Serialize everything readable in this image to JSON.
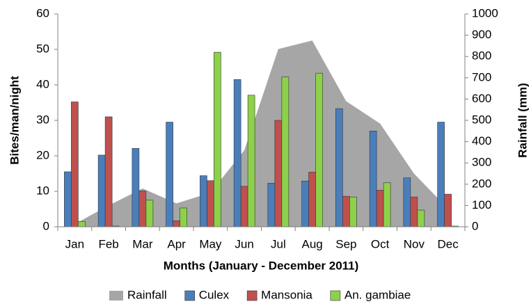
{
  "chart_data": {
    "type": "bar",
    "x_label": "Months (January - December 2011)",
    "y_label": "Bites/man/night",
    "y2_label": "Rainfall (mm)",
    "categories": [
      "Jan",
      "Feb",
      "Mar",
      "Apr",
      "May",
      "Jun",
      "Jul",
      "Aug",
      "Sep",
      "Oct",
      "Nov",
      "Dec"
    ],
    "series": [
      {
        "name": "Rainfall",
        "type": "area",
        "axis": "y2",
        "color": "#a6a6a6",
        "values": [
          13,
          100,
          180,
          110,
          160,
          360,
          835,
          875,
          590,
          485,
          250,
          85
        ]
      },
      {
        "name": "Culex",
        "color": "#4a7ebb",
        "values": [
          15.5,
          20.2,
          22.1,
          29.5,
          14.4,
          41.5,
          12.3,
          12.9,
          33.3,
          27,
          13.8,
          29.5
        ]
      },
      {
        "name": "Mansonia",
        "color": "#c0504d",
        "values": [
          35.2,
          31,
          10.1,
          1.7,
          13,
          11.4,
          30,
          15.4,
          8.6,
          10.3,
          8.4,
          9.2
        ]
      },
      {
        "name": "An. gambiae",
        "color": "#8dd14a",
        "values": [
          1.5,
          0.2,
          7.5,
          5.3,
          49.2,
          37.1,
          42.2,
          43.3,
          8.4,
          12.4,
          4.7,
          0.2
        ]
      }
    ],
    "ylim": [
      0,
      60
    ],
    "yticks": [
      0,
      10,
      20,
      30,
      40,
      50,
      60
    ],
    "y2lim": [
      0,
      1000
    ],
    "y2ticks": [
      0,
      100,
      200,
      300,
      400,
      500,
      600,
      700,
      800,
      900,
      1000
    ],
    "grid": false,
    "legend": "bottom"
  }
}
